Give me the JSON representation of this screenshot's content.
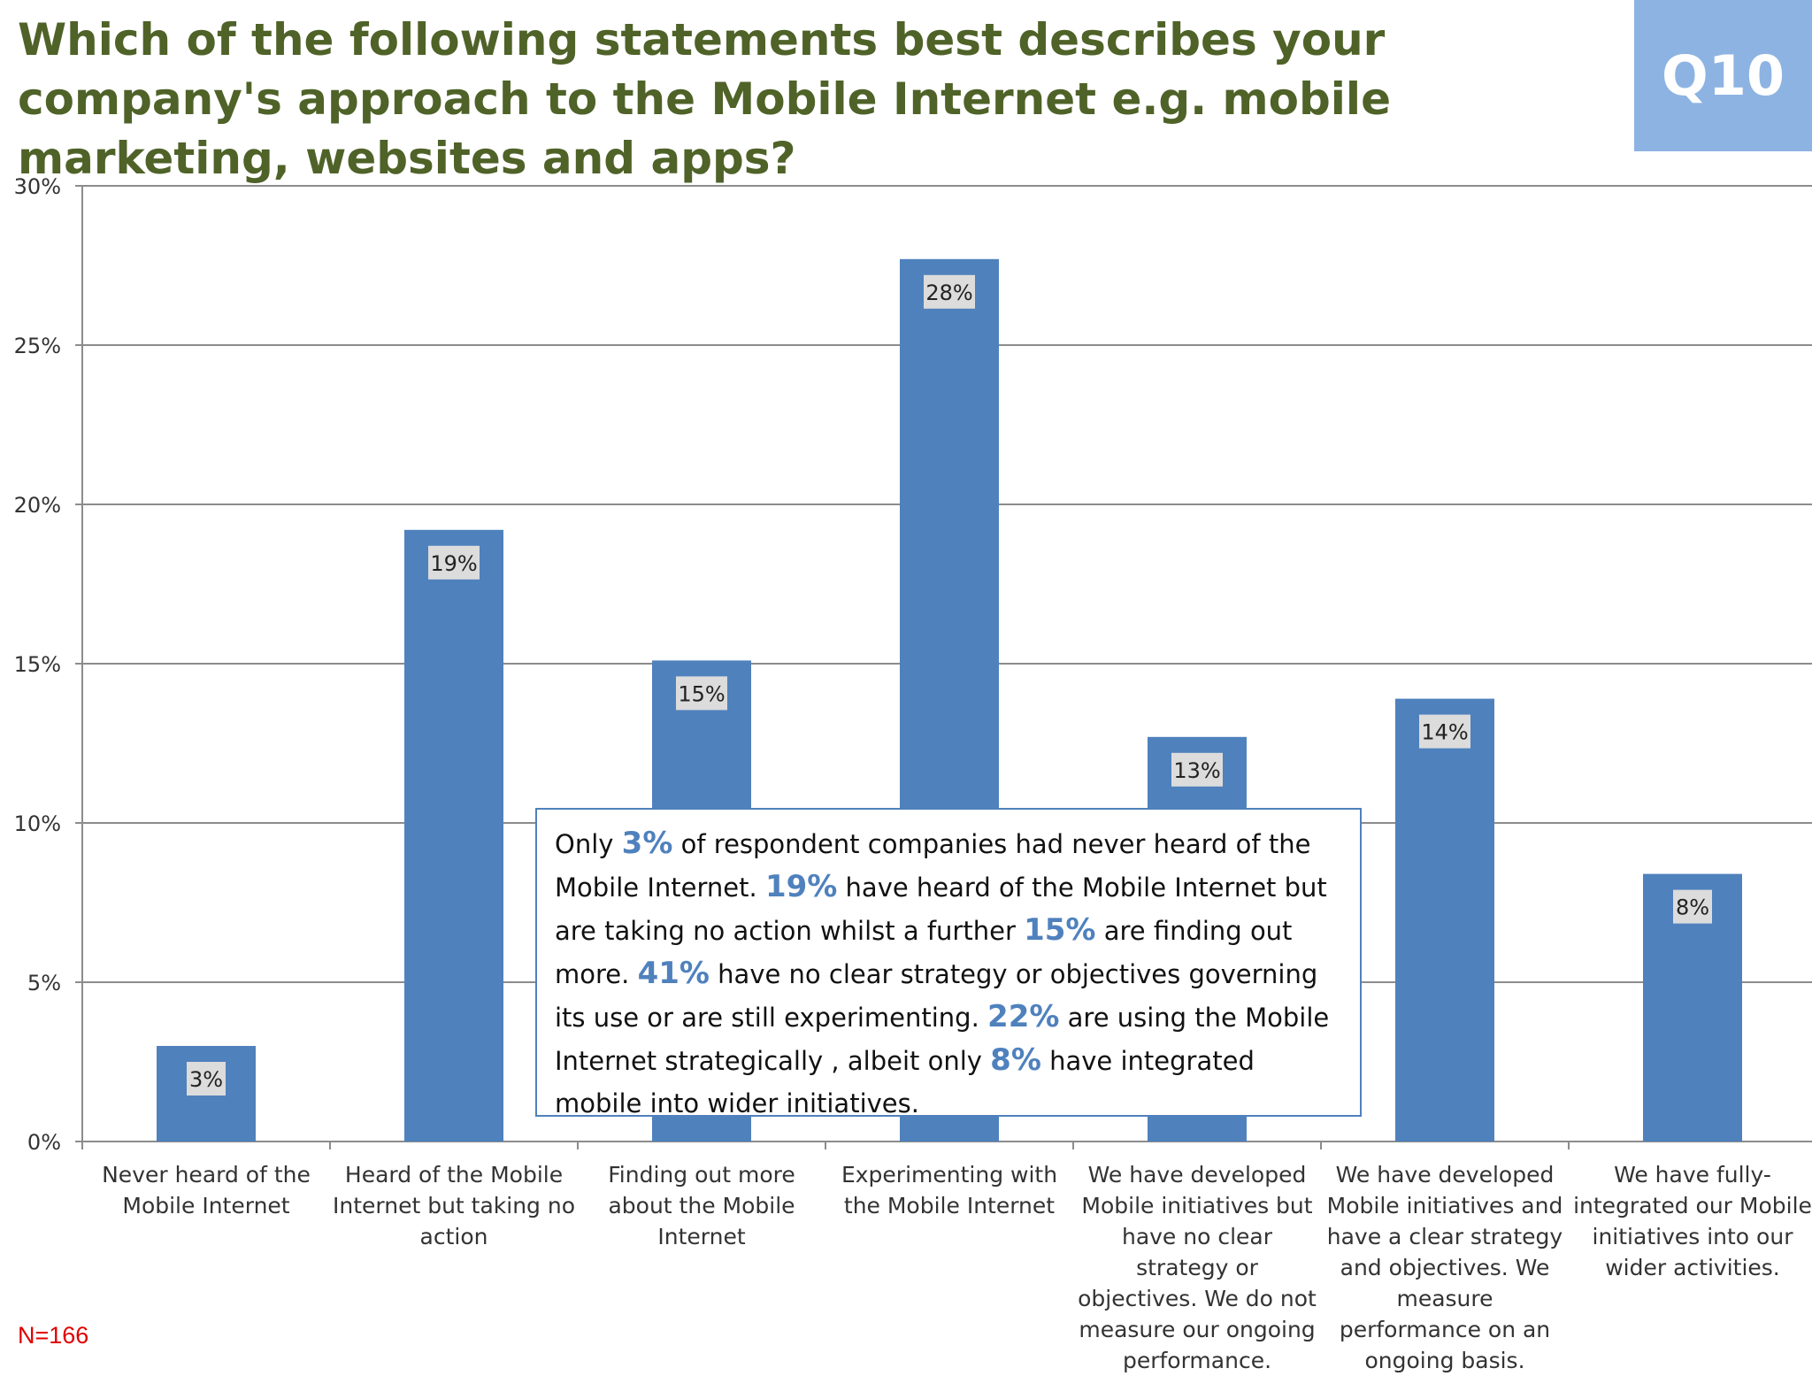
{
  "header": {
    "title": "Which of the following statements best describes your company's approach to the Mobile Internet e.g. mobile marketing, websites and apps?",
    "question_badge": "Q10"
  },
  "colors": {
    "bar": "#4f81bd",
    "title": "#4f6228",
    "badge_bg": "#8db3e2",
    "grid": "#8c8c8c",
    "sample_note": "#e00000"
  },
  "chart_data": {
    "type": "bar",
    "categories": [
      "Never heard of the Mobile Internet",
      "Heard of the Mobile Internet but taking no action",
      "Finding out more about the Mobile Internet",
      "Experimenting with the Mobile Internet",
      "We have developed Mobile initiatives but have no clear strategy or objectives. We do not measure our ongoing performance.",
      "We have developed Mobile initiatives and have a clear strategy and objectives. We measure performance on an ongoing basis.",
      "We have fully-integrated our Mobile initiatives into our wider activities."
    ],
    "values": [
      3,
      19.2,
      15.1,
      27.7,
      12.7,
      13.9,
      8.4
    ],
    "data_labels": [
      "3%",
      "19%",
      "15%",
      "28%",
      "13%",
      "14%",
      "8%"
    ],
    "y_ticks": [
      "0%",
      "5%",
      "10%",
      "15%",
      "20%",
      "25%",
      "30%"
    ],
    "ylim": [
      0,
      30
    ],
    "y_unit": "%",
    "grid": true,
    "legend": "none"
  },
  "callout": {
    "segments": [
      {
        "text": "Only ",
        "hl": false
      },
      {
        "text": "3%",
        "hl": true
      },
      {
        "text": " of respondent companies had never heard of the Mobile Internet. ",
        "hl": false
      },
      {
        "text": "19%",
        "hl": true
      },
      {
        "text": " have heard of the Mobile Internet but are taking no action whilst a further ",
        "hl": false
      },
      {
        "text": "15%",
        "hl": true
      },
      {
        "text": " are finding out more. ",
        "hl": false
      },
      {
        "text": "41%",
        "hl": true
      },
      {
        "text": " have no clear strategy or objectives governing its use or are still experimenting. ",
        "hl": false
      },
      {
        "text": "22%",
        "hl": true
      },
      {
        "text": " are using the Mobile Internet strategically , albeit only ",
        "hl": false
      },
      {
        "text": "8%",
        "hl": true
      },
      {
        "text": " have integrated mobile into wider initiatives.",
        "hl": false
      }
    ]
  },
  "footer": {
    "sample_size": "N=166"
  }
}
